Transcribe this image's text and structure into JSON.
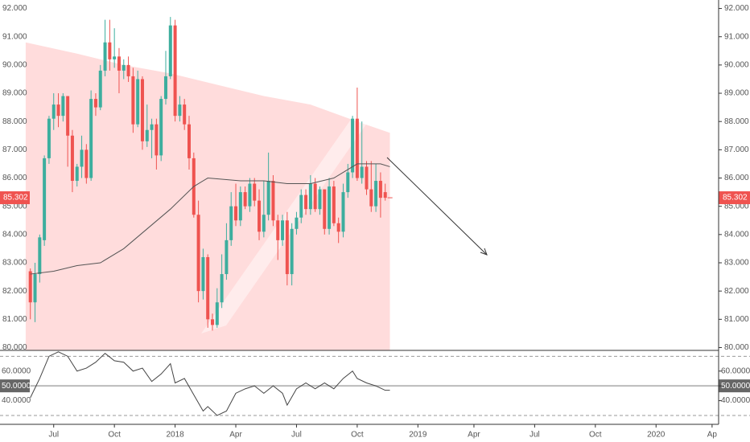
{
  "chart_data": [
    {
      "type": "candlestick",
      "up_color": "#3dae9e",
      "down_color": "#ef5350",
      "band_color": "#ffd6d6",
      "ma_color": "#555555",
      "last_color": "#ef5350",
      "x": [
        0,
        1,
        2,
        3,
        4,
        5,
        6,
        7,
        8,
        9,
        10,
        11,
        12,
        13,
        14,
        15,
        16,
        17,
        18,
        19,
        20,
        21,
        22,
        23,
        24,
        25,
        26,
        27,
        28,
        29,
        30,
        31,
        32,
        33,
        34,
        35,
        36,
        37,
        38,
        39,
        40,
        41,
        42,
        43,
        44,
        45,
        46,
        47,
        48,
        49,
        50,
        51,
        52,
        53,
        54,
        55,
        56,
        57,
        58,
        59,
        60,
        61,
        62,
        63,
        64,
        65,
        66,
        67,
        68,
        69,
        70,
        71,
        72,
        73,
        74,
        75,
        76
      ],
      "open": [
        82.7,
        81.6,
        82.6,
        83.8,
        86.7,
        88.1,
        88.6,
        88.2,
        88.9,
        87.5,
        85.9,
        86.4,
        87.0,
        86.0,
        88.8,
        88.5,
        89.8,
        90.8,
        90.2,
        90.3,
        89.8,
        90.0,
        89.6,
        87.9,
        89.5,
        87.3,
        87.7,
        87.9,
        86.8,
        88.8,
        89.6,
        91.4,
        88.2,
        88.6,
        87.9,
        86.7,
        84.7,
        82.0,
        83.2,
        81.0,
        80.8,
        81.6,
        82.6,
        83.8,
        85.0,
        84.5,
        85.5,
        85.0,
        85.8,
        85.2,
        84.1,
        84.7,
        85.9,
        84.5,
        83.8,
        84.5,
        82.6,
        84.2,
        84.6,
        85.4,
        84.9,
        85.8,
        84.9,
        85.6,
        84.2,
        85.7,
        84.4,
        84.1,
        85.5,
        86.2,
        88.1,
        86.0,
        86.4,
        85.6,
        85.0,
        85.9,
        85.5
      ],
      "high": [
        82.8,
        83.0,
        84.0,
        86.8,
        88.2,
        89.0,
        89.0,
        89.0,
        88.9,
        87.7,
        86.5,
        87.5,
        87.2,
        89.1,
        89.0,
        90.0,
        91.6,
        91.6,
        91.3,
        90.6,
        90.2,
        90.3,
        89.9,
        89.8,
        89.6,
        88.6,
        88.1,
        88.1,
        88.9,
        90.5,
        91.7,
        91.6,
        88.9,
        88.8,
        88.2,
        86.9,
        85.2,
        83.5,
        83.3,
        81.2,
        82.1,
        83.3,
        84.4,
        85.5,
        85.8,
        85.7,
        85.7,
        86.0,
        86.0,
        85.6,
        85.9,
        86.9,
        86.1,
        84.7,
        84.7,
        84.8,
        84.4,
        84.8,
        85.6,
        85.6,
        86.1,
        86.0,
        85.7,
        85.6,
        86.0,
        85.9,
        84.6,
        85.8,
        86.5,
        88.2,
        89.2,
        88.0,
        86.6,
        86.6,
        86.5,
        86.2,
        85.8
      ],
      "low": [
        81.0,
        80.9,
        82.3,
        83.6,
        86.5,
        87.7,
        87.8,
        88.0,
        86.4,
        85.5,
        85.7,
        86.0,
        85.8,
        85.9,
        88.2,
        88.4,
        89.6,
        89.8,
        89.9,
        89.0,
        89.5,
        89.4,
        87.6,
        87.8,
        87.0,
        87.1,
        86.7,
        86.3,
        86.6,
        88.6,
        89.5,
        88.0,
        88.0,
        87.7,
        86.3,
        84.6,
        81.6,
        81.7,
        80.7,
        80.6,
        80.7,
        81.4,
        82.4,
        83.6,
        84.3,
        84.3,
        84.9,
        84.8,
        85.0,
        83.8,
        83.9,
        84.5,
        84.3,
        83.1,
        83.6,
        82.2,
        82.2,
        84.0,
        84.4,
        84.7,
        84.7,
        84.8,
        84.7,
        84.0,
        84.0,
        84.3,
        83.7,
        83.9,
        85.3,
        86.0,
        85.9,
        85.8,
        85.4,
        84.8,
        84.8,
        84.6,
        85.2
      ],
      "close": [
        81.6,
        82.6,
        83.9,
        86.7,
        88.1,
        88.6,
        88.2,
        88.9,
        87.5,
        85.9,
        86.4,
        87.0,
        86.0,
        88.8,
        88.5,
        89.8,
        90.8,
        90.2,
        90.3,
        89.8,
        90.0,
        89.6,
        87.9,
        89.5,
        87.3,
        87.7,
        87.9,
        86.8,
        88.8,
        89.6,
        91.4,
        88.2,
        88.6,
        87.9,
        86.7,
        84.7,
        82.0,
        83.2,
        81.0,
        80.8,
        81.6,
        82.6,
        83.8,
        85.0,
        84.5,
        85.5,
        85.0,
        85.8,
        85.2,
        84.1,
        84.7,
        85.9,
        84.5,
        83.8,
        84.5,
        82.6,
        84.2,
        84.6,
        85.4,
        84.9,
        85.8,
        84.9,
        85.6,
        84.2,
        85.7,
        84.4,
        84.1,
        85.5,
        86.2,
        88.1,
        86.0,
        86.4,
        85.6,
        85.0,
        85.9,
        85.3,
        85.3
      ],
      "ma": {
        "x": [
          0,
          5,
          10,
          15,
          20,
          25,
          30,
          35,
          38,
          45,
          50,
          55,
          60,
          65,
          70,
          75,
          77
        ],
        "values": [
          82.6,
          82.7,
          82.9,
          83.0,
          83.5,
          84.2,
          84.9,
          85.7,
          86.0,
          85.9,
          85.9,
          85.8,
          85.8,
          86.0,
          86.5,
          86.5,
          86.4
        ]
      },
      "band": {
        "x": [
          -1,
          10,
          20,
          30,
          40,
          50,
          60,
          70,
          77
        ],
        "values": [
          90.8,
          90.4,
          90.0,
          89.7,
          89.3,
          88.9,
          88.6,
          88.0,
          87.6
        ]
      },
      "last_price": 85.302,
      "xlim": [
        -6.5,
        147.4
      ],
      "xticks": [
        {
          "value": 5,
          "label": "Jul"
        },
        {
          "value": 18,
          "label": "Oct"
        },
        {
          "value": 31,
          "label": "2018"
        },
        {
          "value": 44,
          "label": "Apr"
        },
        {
          "value": 57,
          "label": "Jul"
        },
        {
          "value": 70,
          "label": "Oct"
        },
        {
          "value": 83,
          "label": "2019"
        },
        {
          "value": 95,
          "label": "Apr"
        },
        {
          "value": 108,
          "label": "Jul"
        },
        {
          "value": 121,
          "label": "Oct"
        },
        {
          "value": 134,
          "label": "2020"
        },
        {
          "value": 146,
          "label": "Ap"
        }
      ],
      "ylim": [
        79.9,
        92.3
      ],
      "yticks": [
        {
          "value": 80,
          "label": "80.000"
        },
        {
          "value": 81,
          "label": "81.000"
        },
        {
          "value": 82,
          "label": "82.000"
        },
        {
          "value": 83,
          "label": "83.000"
        },
        {
          "value": 84,
          "label": "84.000"
        },
        {
          "value": 85,
          "label": "85.000"
        },
        {
          "value": 86,
          "label": "86.000"
        },
        {
          "value": 87,
          "label": "87.000"
        },
        {
          "value": 88,
          "label": "88.000"
        },
        {
          "value": 89,
          "label": "89.000"
        },
        {
          "value": 90,
          "label": "90.000"
        },
        {
          "value": 91,
          "label": "91.000"
        },
        {
          "value": 92,
          "label": "92.000"
        }
      ]
    },
    {
      "type": "line",
      "color": "#444444",
      "x": [
        0,
        2,
        4,
        6,
        8,
        10,
        12,
        14,
        16,
        18,
        20,
        22,
        24,
        26,
        28,
        30,
        31,
        33,
        35,
        37,
        38,
        40,
        42,
        44,
        46,
        48,
        50,
        52,
        54,
        55,
        57,
        59,
        61,
        63,
        65,
        67,
        69,
        70,
        72,
        74,
        76,
        77
      ],
      "values": [
        42,
        55,
        70,
        73,
        70,
        60,
        62,
        66,
        72,
        67,
        66,
        60,
        62,
        53,
        58,
        65,
        52,
        55,
        44,
        33,
        36,
        30,
        33,
        45,
        48,
        50,
        45,
        50,
        45,
        37,
        48,
        52,
        48,
        52,
        48,
        55,
        60,
        55,
        52,
        50,
        47,
        47
      ],
      "levels": [
        70,
        30
      ],
      "ylim": [
        24,
        74
      ],
      "yticks": [
        {
          "value": 60,
          "label": "60.0000"
        },
        {
          "value": 50,
          "label": "50.0000"
        },
        {
          "value": 40,
          "label": "40.0000"
        }
      ]
    }
  ]
}
